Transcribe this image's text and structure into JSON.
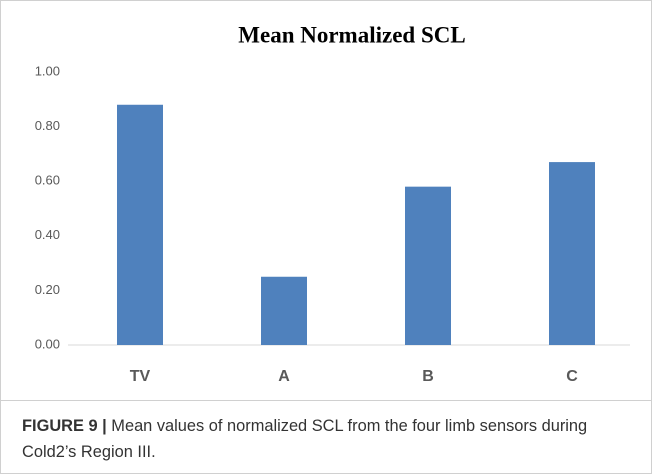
{
  "chart_data": {
    "type": "bar",
    "title": "Mean Normalized SCL",
    "categories": [
      "TV",
      "A",
      "B",
      "C"
    ],
    "values": [
      0.88,
      0.25,
      0.58,
      0.67
    ],
    "color": "#4f81bd",
    "ylim": [
      0,
      1
    ],
    "yticks": [
      {
        "value": 0,
        "label": "0.00"
      },
      {
        "value": 0.2,
        "label": "0.20"
      },
      {
        "value": 0.4,
        "label": "0.40"
      },
      {
        "value": 0.6,
        "label": "0.60"
      },
      {
        "value": 0.8,
        "label": "0.80"
      },
      {
        "value": 1,
        "label": "1.00"
      }
    ],
    "grid": false
  },
  "caption": {
    "label": "FIGURE 9 |",
    "text": "Mean values of normalized SCL from the four limb sensors during Cold2’s Region III."
  }
}
